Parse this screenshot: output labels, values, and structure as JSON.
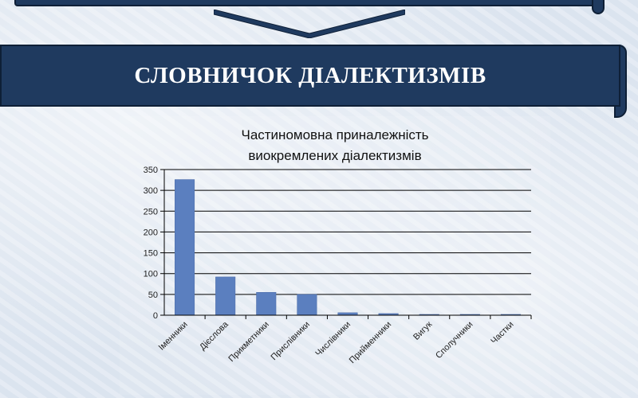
{
  "page": {
    "title": "СЛОВНИЧОК ДІАЛЕКТИЗМІВ"
  },
  "colors": {
    "banner": "#1f3a5f",
    "bar": "#5b7fbf"
  },
  "chart_data": {
    "type": "bar",
    "title_lines": [
      "Частиномовна приналежність",
      "виокремлених діалектизмів"
    ],
    "categories": [
      "Іменники",
      "Дієслова",
      "Прикметники",
      "Прислівники",
      "Числівники",
      "Прийменники",
      "Вигук",
      "Сполучники",
      "Частки"
    ],
    "values": [
      326,
      92,
      55,
      50,
      6,
      4,
      2,
      2,
      2
    ],
    "ylim": [
      0,
      350
    ],
    "yticks": [
      0,
      50,
      100,
      150,
      200,
      250,
      300,
      350
    ],
    "grid": true,
    "legend": "none"
  }
}
